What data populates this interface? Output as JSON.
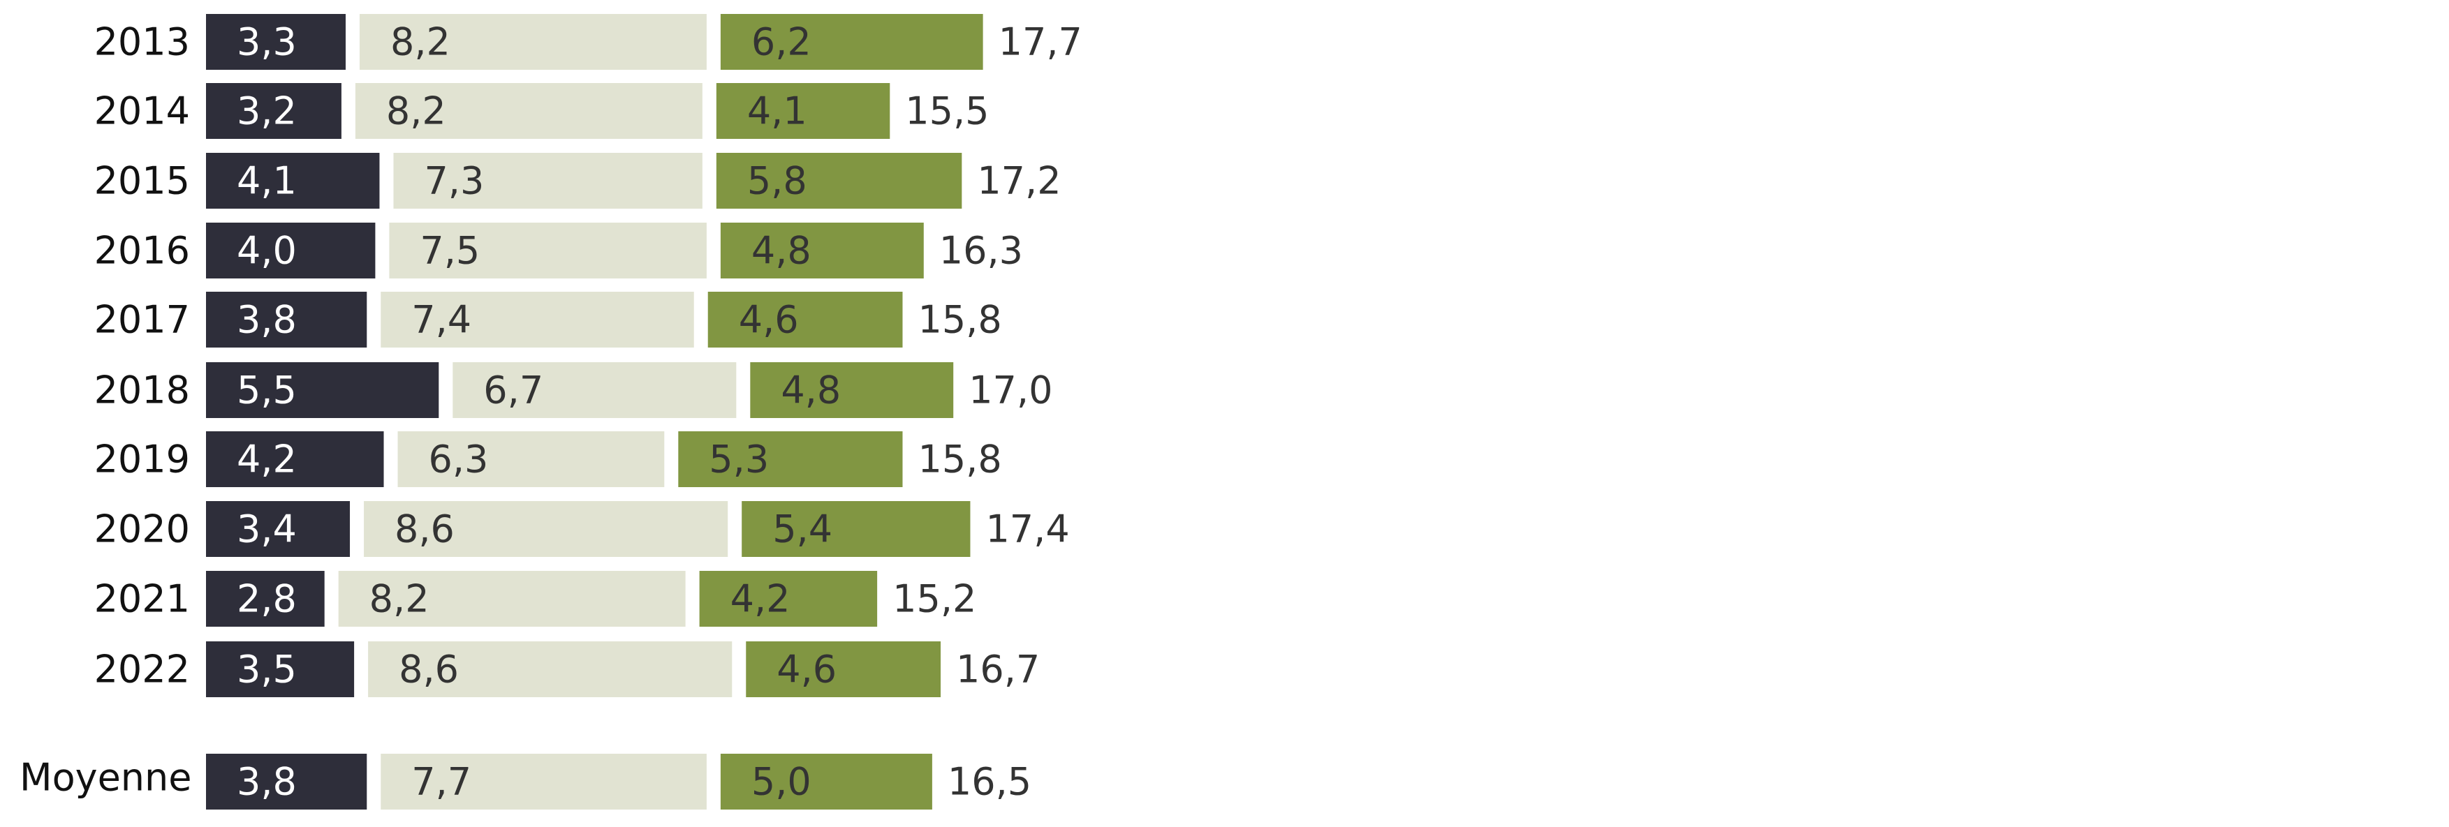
{
  "chart_data": {
    "type": "bar",
    "orientation": "horizontal",
    "stacked": true,
    "categories": [
      "2013",
      "2014",
      "2015",
      "2016",
      "2017",
      "2018",
      "2019",
      "2020",
      "2021",
      "2022",
      "Moyenne"
    ],
    "series": [
      {
        "values": [
          3.3,
          3.2,
          4.1,
          4.0,
          3.8,
          5.5,
          4.2,
          3.4,
          2.8,
          3.5,
          3.8
        ],
        "labels": [
          "3,3",
          "3,2",
          "4,1",
          "4,0",
          "3,8",
          "5,5",
          "4,2",
          "3,4",
          "2,8",
          "3,5",
          "3,8"
        ],
        "color": "#2e2e3a",
        "label_color": "#ffffff"
      },
      {
        "values": [
          8.2,
          8.2,
          7.3,
          7.5,
          7.4,
          6.7,
          6.3,
          8.6,
          8.2,
          8.6,
          7.7
        ],
        "labels": [
          "8,2",
          "8,2",
          "7,3",
          "7,5",
          "7,4",
          "6,7",
          "6,3",
          "8,6",
          "8,2",
          "8,6",
          "7,7"
        ],
        "color": "#e1e3d2",
        "label_color": "#333333"
      },
      {
        "values": [
          6.2,
          4.1,
          5.8,
          4.8,
          4.6,
          4.8,
          5.3,
          5.4,
          4.2,
          4.6,
          5.0
        ],
        "labels": [
          "6,2",
          "4,1",
          "5,8",
          "4,8",
          "4,6",
          "4,8",
          "5,3",
          "5,4",
          "4,2",
          "4,6",
          "5,0"
        ],
        "color": "#819642",
        "label_color": "#333333"
      }
    ],
    "totals": [
      "17,7",
      "15,5",
      "17,2",
      "16,3",
      "15,8",
      "17,0",
      "15,8",
      "17,4",
      "15,2",
      "16,7",
      "16,5"
    ],
    "legend": "none",
    "grid": false
  }
}
